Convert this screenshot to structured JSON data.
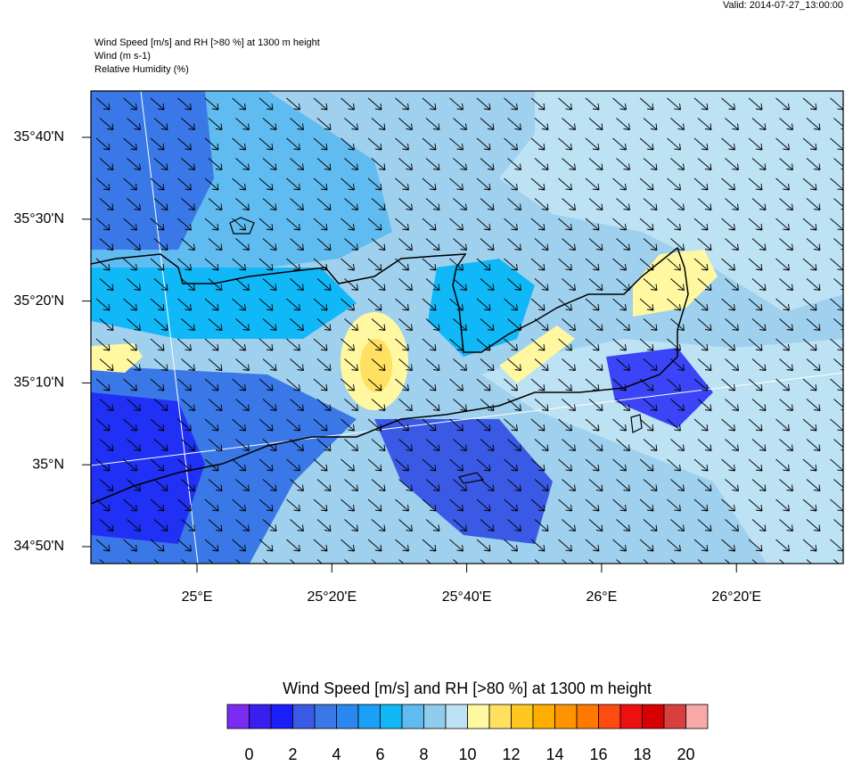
{
  "valid": "Valid: 2014-07-27_13:00:00",
  "header": [
    "Wind Speed [m/s] and RH [>80 %] at 1300 m height",
    "Wind   (m s-1)",
    "Relative Humidity   (%)"
  ],
  "lat_labels": [
    "35°40'N",
    "35°30'N",
    "35°20'N",
    "35°10'N",
    "35°N",
    "34°50'N"
  ],
  "lon_labels": [
    "25°E",
    "25°20'E",
    "25°40'E",
    "26°E",
    "26°20'E"
  ],
  "colorbar": {
    "title": "Wind Speed [m/s] and RH [>80 %] at 1300 m height",
    "colors": [
      "#7b2cf0",
      "#3a1ef0",
      "#1a1ef8",
      "#3a5ae6",
      "#3a78e8",
      "#2a88f0",
      "#1aa0f8",
      "#10b8f8",
      "#60bcf0",
      "#90ccec",
      "#bde2f4",
      "#fff8a0",
      "#ffe060",
      "#ffc820",
      "#ffae00",
      "#ff9400",
      "#ff7800",
      "#ff4a10",
      "#ee1010",
      "#d80000",
      "#d84040",
      "#f8a8a8"
    ],
    "labels": [
      0,
      2,
      4,
      6,
      8,
      10,
      12,
      14,
      16,
      18,
      20
    ]
  }
}
